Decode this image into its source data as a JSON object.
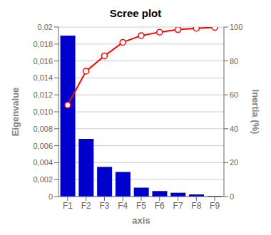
{
  "chart_data": {
    "type": "bar",
    "title": "Scree plot",
    "xlabel": "axis",
    "ylabel": "Eigenvalue",
    "y2label": "Inertia (%)",
    "categories": [
      "F1",
      "F2",
      "F3",
      "F4",
      "F5",
      "F6",
      "F7",
      "F8",
      "F9"
    ],
    "series": [
      {
        "type": "bar",
        "color": "#0000CC",
        "values": [
          0.019,
          0.0068,
          0.0035,
          0.0029,
          0.00105,
          0.00065,
          0.00045,
          0.00025,
          8e-05
        ]
      },
      {
        "type": "line",
        "color": "#FF0000",
        "axis": "y2",
        "marker": "o",
        "values": [
          54,
          74,
          83,
          91,
          95,
          97,
          98.5,
          99.3,
          99.8
        ]
      }
    ],
    "ylim": [
      0,
      0.02
    ],
    "yticks": [
      0,
      {
        "value": 0.002,
        "label": "0,002"
      },
      {
        "value": 0.004,
        "label": "0,004"
      },
      {
        "value": 0.006,
        "label": "0,006"
      },
      {
        "value": 0.008,
        "label": "0,008"
      },
      {
        "value": 0.01,
        "label": "0,010"
      },
      {
        "value": 0.012,
        "label": "0,012"
      },
      {
        "value": 0.014,
        "label": "0,014"
      },
      {
        "value": 0.016,
        "label": "0,016"
      },
      {
        "value": 0.018,
        "label": "0,018"
      },
      {
        "value": 0.02,
        "label": "0,02"
      }
    ],
    "y2lim": [
      0,
      100
    ],
    "y2ticks": [
      0,
      20,
      40,
      60,
      80,
      100
    ],
    "grid": true
  }
}
